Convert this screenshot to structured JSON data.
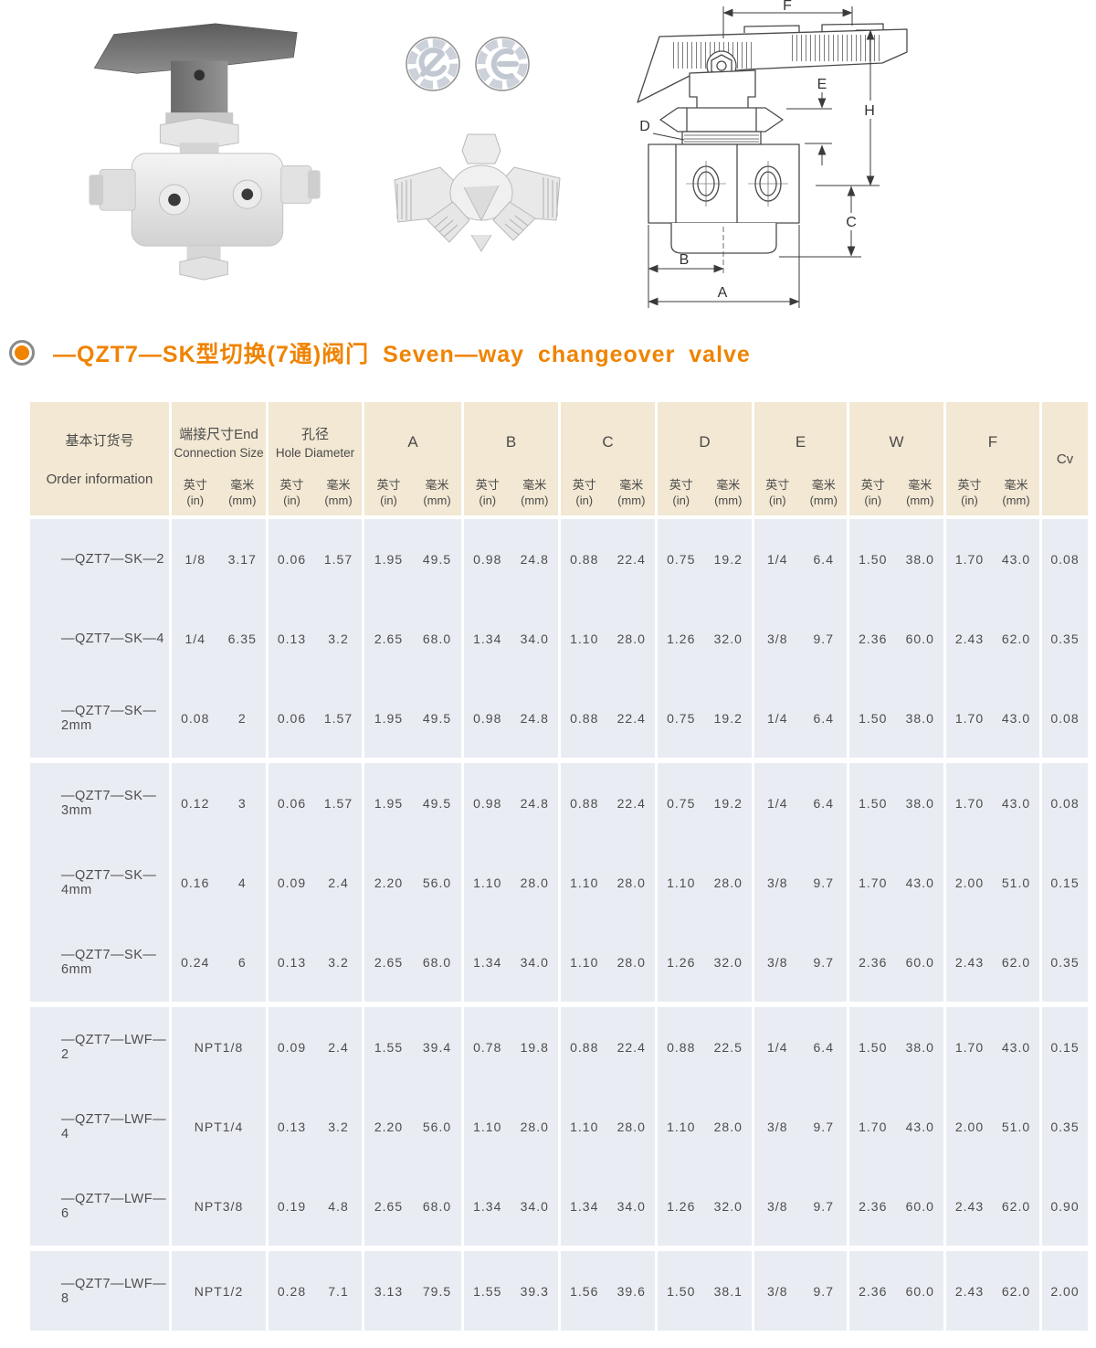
{
  "title": {
    "text": "—QZT7—SK型切换(7通)阀门 Seven—way changeover valve",
    "accent_color": "#F08300"
  },
  "drawing": {
    "labels": {
      "F": "F",
      "E": "E",
      "H": "H",
      "D": "D",
      "C": "C",
      "B": "B",
      "A": "A"
    }
  },
  "table": {
    "colors": {
      "header_bg": "#F2E8D3",
      "body_bg": "#E9ECF3",
      "text": "#4a4a4a"
    },
    "header": {
      "order_zh": "基本订货号",
      "order_en": "Order information",
      "cv_label": "Cv",
      "sub": {
        "in_zh": "英寸",
        "in_en": "(in)",
        "mm_zh": "毫米",
        "mm_en": "(mm)"
      },
      "groups": [
        {
          "key": "connection-size",
          "zh": "端接尺寸End",
          "en": "Connection Size"
        },
        {
          "key": "hole-diameter",
          "zh": "孔径",
          "en": "Hole Diameter"
        },
        {
          "key": "dim-a",
          "letter": "A"
        },
        {
          "key": "dim-b",
          "letter": "B"
        },
        {
          "key": "dim-c",
          "letter": "C"
        },
        {
          "key": "dim-d",
          "letter": "D"
        },
        {
          "key": "dim-e",
          "letter": "E"
        },
        {
          "key": "dim-w",
          "letter": "W"
        },
        {
          "key": "dim-f",
          "letter": "F"
        }
      ]
    },
    "group_breaks": [
      2,
      5,
      8
    ],
    "rows": [
      {
        "model": "—QZT7—SK—2",
        "cols": [
          [
            "1/8",
            "3.17"
          ],
          [
            "0.06",
            "1.57"
          ],
          [
            "1.95",
            "49.5"
          ],
          [
            "0.98",
            "24.8"
          ],
          [
            "0.88",
            "22.4"
          ],
          [
            "0.75",
            "19.2"
          ],
          [
            "1/4",
            "6.4"
          ],
          [
            "1.50",
            "38.0"
          ],
          [
            "1.70",
            "43.0"
          ]
        ],
        "cv": "0.08"
      },
      {
        "model": "—QZT7—SK—4",
        "cols": [
          [
            "1/4",
            "6.35"
          ],
          [
            "0.13",
            "3.2"
          ],
          [
            "2.65",
            "68.0"
          ],
          [
            "1.34",
            "34.0"
          ],
          [
            "1.10",
            "28.0"
          ],
          [
            "1.26",
            "32.0"
          ],
          [
            "3/8",
            "9.7"
          ],
          [
            "2.36",
            "60.0"
          ],
          [
            "2.43",
            "62.0"
          ]
        ],
        "cv": "0.35"
      },
      {
        "model": "—QZT7—SK—2mm",
        "cols": [
          [
            "0.08",
            "2"
          ],
          [
            "0.06",
            "1.57"
          ],
          [
            "1.95",
            "49.5"
          ],
          [
            "0.98",
            "24.8"
          ],
          [
            "0.88",
            "22.4"
          ],
          [
            "0.75",
            "19.2"
          ],
          [
            "1/4",
            "6.4"
          ],
          [
            "1.50",
            "38.0"
          ],
          [
            "1.70",
            "43.0"
          ]
        ],
        "cv": "0.08"
      },
      {
        "model": "—QZT7—SK—3mm",
        "cols": [
          [
            "0.12",
            "3"
          ],
          [
            "0.06",
            "1.57"
          ],
          [
            "1.95",
            "49.5"
          ],
          [
            "0.98",
            "24.8"
          ],
          [
            "0.88",
            "22.4"
          ],
          [
            "0.75",
            "19.2"
          ],
          [
            "1/4",
            "6.4"
          ],
          [
            "1.50",
            "38.0"
          ],
          [
            "1.70",
            "43.0"
          ]
        ],
        "cv": "0.08"
      },
      {
        "model": "—QZT7—SK—4mm",
        "cols": [
          [
            "0.16",
            "4"
          ],
          [
            "0.09",
            "2.4"
          ],
          [
            "2.20",
            "56.0"
          ],
          [
            "1.10",
            "28.0"
          ],
          [
            "1.10",
            "28.0"
          ],
          [
            "1.10",
            "28.0"
          ],
          [
            "3/8",
            "9.7"
          ],
          [
            "1.70",
            "43.0"
          ],
          [
            "2.00",
            "51.0"
          ]
        ],
        "cv": "0.15"
      },
      {
        "model": "—QZT7—SK—6mm",
        "cols": [
          [
            "0.24",
            "6"
          ],
          [
            "0.13",
            "3.2"
          ],
          [
            "2.65",
            "68.0"
          ],
          [
            "1.34",
            "34.0"
          ],
          [
            "1.10",
            "28.0"
          ],
          [
            "1.26",
            "32.0"
          ],
          [
            "3/8",
            "9.7"
          ],
          [
            "2.36",
            "60.0"
          ],
          [
            "2.43",
            "62.0"
          ]
        ],
        "cv": "0.35"
      },
      {
        "model": "—QZT7—LWF—2",
        "cols": [
          [
            "NPT1/8"
          ],
          [
            "0.09",
            "2.4"
          ],
          [
            "1.55",
            "39.4"
          ],
          [
            "0.78",
            "19.8"
          ],
          [
            "0.88",
            "22.4"
          ],
          [
            "0.88",
            "22.5"
          ],
          [
            "1/4",
            "6.4"
          ],
          [
            "1.50",
            "38.0"
          ],
          [
            "1.70",
            "43.0"
          ]
        ],
        "cv": "0.15"
      },
      {
        "model": "—QZT7—LWF—4",
        "cols": [
          [
            "NPT1/4"
          ],
          [
            "0.13",
            "3.2"
          ],
          [
            "2.20",
            "56.0"
          ],
          [
            "1.10",
            "28.0"
          ],
          [
            "1.10",
            "28.0"
          ],
          [
            "1.10",
            "28.0"
          ],
          [
            "3/8",
            "9.7"
          ],
          [
            "1.70",
            "43.0"
          ],
          [
            "2.00",
            "51.0"
          ]
        ],
        "cv": "0.35"
      },
      {
        "model": "—QZT7—LWF—6",
        "cols": [
          [
            "NPT3/8"
          ],
          [
            "0.19",
            "4.8"
          ],
          [
            "2.65",
            "68.0"
          ],
          [
            "1.34",
            "34.0"
          ],
          [
            "1.34",
            "34.0"
          ],
          [
            "1.26",
            "32.0"
          ],
          [
            "3/8",
            "9.7"
          ],
          [
            "2.36",
            "60.0"
          ],
          [
            "2.43",
            "62.0"
          ]
        ],
        "cv": "0.90"
      },
      {
        "model": "—QZT7—LWF—8",
        "cols": [
          [
            "NPT1/2"
          ],
          [
            "0.28",
            "7.1"
          ],
          [
            "3.13",
            "79.5"
          ],
          [
            "1.55",
            "39.3"
          ],
          [
            "1.56",
            "39.6"
          ],
          [
            "1.50",
            "38.1"
          ],
          [
            "3/8",
            "9.7"
          ],
          [
            "2.36",
            "60.0"
          ],
          [
            "2.43",
            "62.0"
          ]
        ],
        "cv": "2.00"
      }
    ]
  }
}
